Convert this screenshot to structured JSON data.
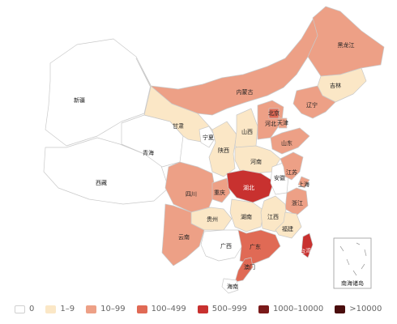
{
  "map": {
    "inset_label": "南海诸岛",
    "levels": [
      {
        "label": "0",
        "color": "#ffffff"
      },
      {
        "label": "1–9",
        "color": "#fbe7c6"
      },
      {
        "label": "10–99",
        "color": "#eda086"
      },
      {
        "label": "100–499",
        "color": "#e06a55"
      },
      {
        "label": "500–999",
        "color": "#c8312f"
      },
      {
        "label": "1000–10000",
        "color": "#7a1a1a"
      },
      {
        "label": ">10000",
        "color": "#4a0d0d"
      }
    ],
    "regions": [
      {
        "id": "xinjiang",
        "label": "新疆",
        "level": 0
      },
      {
        "id": "xizang",
        "label": "西藏",
        "level": 0
      },
      {
        "id": "qinghai",
        "label": "青海",
        "level": 0
      },
      {
        "id": "gansu",
        "label": "甘肃",
        "level": 1
      },
      {
        "id": "neimenggu",
        "label": "内蒙古",
        "level": 2
      },
      {
        "id": "heilongjiang",
        "label": "黑龙江",
        "level": 2
      },
      {
        "id": "jilin",
        "label": "吉林",
        "level": 1
      },
      {
        "id": "liaoning",
        "label": "辽宁",
        "level": 2
      },
      {
        "id": "ningxia",
        "label": "宁夏",
        "level": 0
      },
      {
        "id": "shaanxi",
        "label": "陕西",
        "level": 1
      },
      {
        "id": "shanxi",
        "label": "山西",
        "level": 1
      },
      {
        "id": "hebei",
        "label": "河北",
        "level": 2
      },
      {
        "id": "beijing",
        "label": "北京",
        "level": 3
      },
      {
        "id": "tianjin",
        "label": "天津",
        "level": 2
      },
      {
        "id": "shandong",
        "label": "山东",
        "level": 2
      },
      {
        "id": "henan",
        "label": "河南",
        "level": 1
      },
      {
        "id": "sichuan",
        "label": "四川",
        "level": 2
      },
      {
        "id": "chongqing",
        "label": "重庆",
        "level": 2
      },
      {
        "id": "hubei",
        "label": "湖北",
        "level": 4
      },
      {
        "id": "anhui",
        "label": "安徽",
        "level": 0
      },
      {
        "id": "jiangsu",
        "label": "江苏",
        "level": 2
      },
      {
        "id": "shanghai",
        "label": "上海",
        "level": 2
      },
      {
        "id": "zhejiang",
        "label": "浙江",
        "level": 2
      },
      {
        "id": "guizhou",
        "label": "贵州",
        "level": 1
      },
      {
        "id": "hunan",
        "label": "湖南",
        "level": 1
      },
      {
        "id": "jiangxi",
        "label": "江西",
        "level": 1
      },
      {
        "id": "fujian",
        "label": "福建",
        "level": 1
      },
      {
        "id": "yunnan",
        "label": "云南",
        "level": 2
      },
      {
        "id": "guangxi",
        "label": "广西",
        "level": 0
      },
      {
        "id": "guangdong",
        "label": "广东",
        "level": 3
      },
      {
        "id": "aomen",
        "label": "澳门",
        "level": 3
      },
      {
        "id": "hainan",
        "label": "海南",
        "level": 0
      },
      {
        "id": "taiwan",
        "label": "台湾",
        "level": 4
      }
    ]
  }
}
